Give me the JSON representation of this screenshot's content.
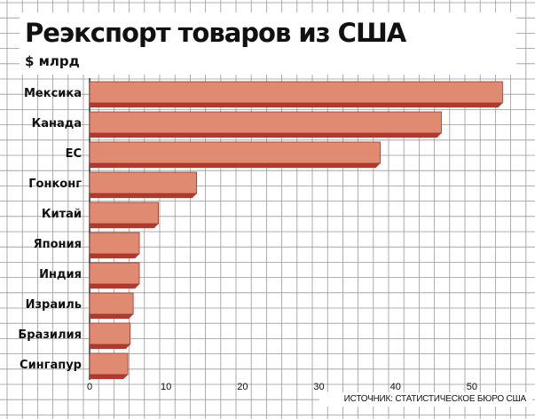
{
  "chart_data": {
    "type": "bar",
    "orientation": "horizontal",
    "title": "Реэкспорт товаров из США",
    "unit": "$ млрд",
    "categories": [
      "Мексика",
      "Канада",
      "ЕС",
      "Гонконг",
      "Китай",
      "Япония",
      "Индия",
      "Израиль",
      "Бразилия",
      "Сингапур"
    ],
    "values": [
      54,
      46,
      38,
      14,
      9,
      6.5,
      6.5,
      5.7,
      5.3,
      5
    ],
    "xlim": [
      0,
      55
    ],
    "xticks": [
      "0",
      "10",
      "20",
      "30",
      "40",
      "50"
    ],
    "source": "ИСТОЧНИК: СТАТИСТИЧЕСКОЕ БЮРО США",
    "grid": true,
    "colors": {
      "bar": "#e08a72",
      "bar_shadow": "#b03a2e",
      "bar_edge": "#9c3328",
      "grid": "#999999"
    }
  }
}
